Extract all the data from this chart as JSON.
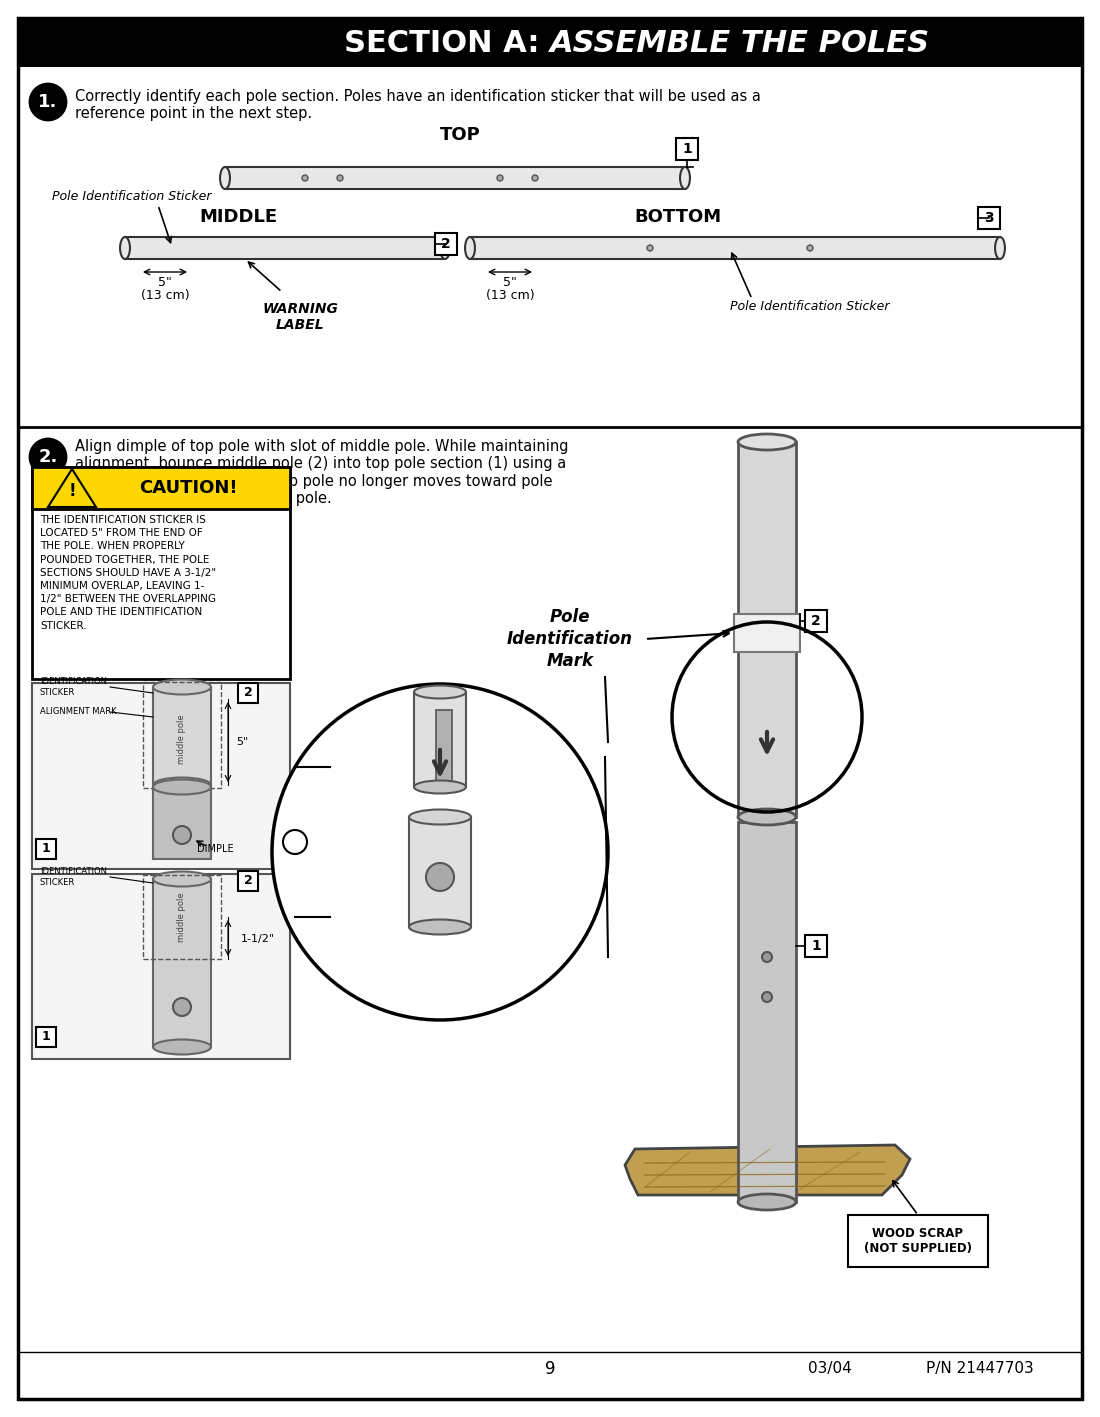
{
  "title_regular": "SECTION A: ",
  "title_italic": "ASSEMBLE THE POLES",
  "bg_color": "#ffffff",
  "header_bg": "#000000",
  "header_text_color": "#ffffff",
  "border_color": "#000000",
  "step1_text": "Correctly identify each pole section. Poles have an identification sticker that will be used as a\nreference point in the next step.",
  "step2_text": "Align dimple of top pole with slot of middle pole. While maintaining\nalignment, bounce middle pole (2) into top pole section (1) using a\nwood scrap as shown until top pole no longer moves toward pole\nidentification mark on middle pole.",
  "caution_title": "CAUTION!",
  "caution_text": "THE IDENTIFICATION STICKER IS\nLOCATED 5\" FROM THE END OF\nTHE POLE. WHEN PROPERLY\nPOUNDED TOGETHER, THE POLE\nSECTIONS SHOULD HAVE A 3-1/2\"\nMINIMUM OVERLAP, LEAVING 1-\n1/2\" BETWEEN THE OVERLAPPING\nPOLE AND THE IDENTIFICATION\nSTICKER.",
  "top_label": "TOP",
  "middle_label": "MIDDLE",
  "bottom_label": "BOTTOM",
  "pole_id_sticker": "Pole Identification Sticker",
  "warning_label": "WARNING\nLABEL",
  "pole_id_mark": "Pole\nIdentification\nMark",
  "dimple_label": "DIMPLE",
  "wood_scrap_label": "WOOD SCRAP\n(NOT SUPPLIED)",
  "identification_sticker_label": "IDENTIFICATION\nSTICKER",
  "alignment_mark_label": "ALIGNMENT MARK",
  "page_num": "9",
  "date": "03/04",
  "part_num": "P/N 21447703",
  "five_in": "5\"",
  "five_cm": "(13 cm)",
  "one_half": "1-1/2\""
}
